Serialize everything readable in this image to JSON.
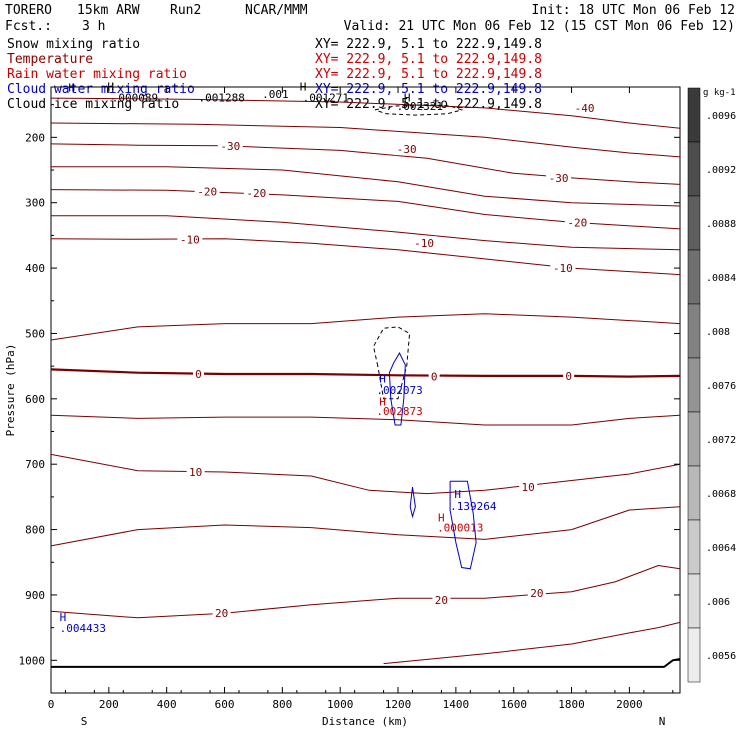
{
  "header": {
    "model": "TORERO",
    "resolution": "15km ARW",
    "run": "Run2",
    "org": "NCAR/MMM",
    "init": "Init: 18 UTC Mon 06 Feb 12",
    "fcst_label": "Fcst.:",
    "fcst_value": "3 h",
    "valid": "Valid: 21 UTC Mon 06 Feb 12 (15 CST Mon 06 Feb 12)"
  },
  "fields": [
    {
      "name": "Snow mixing ratio",
      "color": "#000000",
      "xy": "XY= 222.9,  5.1 to 222.9,149.8"
    },
    {
      "name": "Temperature",
      "color": "#8b0000",
      "xy": "XY= 222.9,  5.1 to 222.9,149.8"
    },
    {
      "name": "Rain water mixing ratio",
      "color": "#cc0000",
      "xy": "XY= 222.9,  5.1 to 222.9,149.8"
    },
    {
      "name": "Cloud water mixing ratio",
      "color": "#0000cc",
      "xy": "XY= 222.9,  5.1 to 222.9,149.8"
    },
    {
      "name": "Cloud ice mixing ratio",
      "color": "#000000",
      "xy": "XY= 222.9,  5.1 to 222.9,149.8"
    }
  ],
  "chart_data": {
    "type": "cross-section contour",
    "xlabel": "Distance (km)",
    "ylabel": "Pressure (hPa)",
    "x_range": [
      0,
      2175
    ],
    "y_range": [
      1050,
      123
    ],
    "x_ticks": [
      0,
      200,
      400,
      600,
      800,
      1000,
      1200,
      1400,
      1600,
      1800,
      2000
    ],
    "y_ticks": [
      200,
      300,
      400,
      500,
      600,
      700,
      800,
      900,
      1000
    ],
    "x_end_labels": {
      "left": "S",
      "right": "N"
    },
    "temperature_contours": [
      {
        "level": -40,
        "points": [
          [
            0,
            140
          ],
          [
            500,
            142
          ],
          [
            1000,
            146
          ],
          [
            1500,
            155
          ],
          [
            1800,
            167
          ],
          [
            2000,
            178
          ],
          [
            2175,
            186
          ]
        ]
      },
      {
        "level": -35,
        "points": [
          [
            0,
            178
          ],
          [
            500,
            180
          ],
          [
            1000,
            185
          ],
          [
            1500,
            200
          ],
          [
            1800,
            215
          ],
          [
            2000,
            224
          ],
          [
            2175,
            230
          ]
        ]
      },
      {
        "level": -30,
        "points": [
          [
            0,
            210
          ],
          [
            300,
            212
          ],
          [
            600,
            213
          ],
          [
            1000,
            220
          ],
          [
            1300,
            232
          ],
          [
            1600,
            255
          ],
          [
            1800,
            262
          ],
          [
            2000,
            268
          ],
          [
            2175,
            272
          ]
        ]
      },
      {
        "level": -25,
        "points": [
          [
            0,
            245
          ],
          [
            400,
            245
          ],
          [
            800,
            250
          ],
          [
            1200,
            268
          ],
          [
            1500,
            290
          ],
          [
            1800,
            300
          ],
          [
            2175,
            305
          ]
        ]
      },
      {
        "level": -20,
        "points": [
          [
            0,
            280
          ],
          [
            400,
            281
          ],
          [
            800,
            288
          ],
          [
            1200,
            298
          ],
          [
            1500,
            318
          ],
          [
            1800,
            330
          ],
          [
            2175,
            340
          ]
        ]
      },
      {
        "level": -15,
        "points": [
          [
            0,
            320
          ],
          [
            400,
            320
          ],
          [
            800,
            330
          ],
          [
            1200,
            345
          ],
          [
            1500,
            358
          ],
          [
            1800,
            368
          ],
          [
            2175,
            372
          ]
        ]
      },
      {
        "level": -10,
        "points": [
          [
            0,
            355
          ],
          [
            300,
            356
          ],
          [
            600,
            355
          ],
          [
            900,
            362
          ],
          [
            1200,
            372
          ],
          [
            1500,
            386
          ],
          [
            1800,
            400
          ],
          [
            2175,
            410
          ]
        ]
      },
      {
        "level": -5,
        "points": [
          [
            0,
            510
          ],
          [
            300,
            490
          ],
          [
            600,
            485
          ],
          [
            900,
            485
          ],
          [
            1200,
            475
          ],
          [
            1500,
            470
          ],
          [
            1800,
            475
          ],
          [
            2175,
            485
          ]
        ]
      },
      {
        "level": 0,
        "points": [
          [
            0,
            555
          ],
          [
            300,
            560
          ],
          [
            600,
            562
          ],
          [
            900,
            562
          ],
          [
            1200,
            564
          ],
          [
            1500,
            565
          ],
          [
            1800,
            565
          ],
          [
            2000,
            566
          ],
          [
            2175,
            565
          ]
        ]
      },
      {
        "level": 5,
        "points": [
          [
            0,
            625
          ],
          [
            300,
            630
          ],
          [
            600,
            628
          ],
          [
            900,
            628
          ],
          [
            1200,
            632
          ],
          [
            1500,
            640
          ],
          [
            1800,
            640
          ],
          [
            2000,
            630
          ],
          [
            2175,
            625
          ]
        ]
      },
      {
        "level": 10,
        "points": [
          [
            0,
            685
          ],
          [
            300,
            710
          ],
          [
            600,
            712
          ],
          [
            900,
            718
          ],
          [
            1100,
            740
          ],
          [
            1300,
            745
          ],
          [
            1500,
            740
          ],
          [
            1800,
            725
          ],
          [
            2000,
            715
          ],
          [
            2175,
            700
          ]
        ]
      },
      {
        "level": 15,
        "points": [
          [
            0,
            825
          ],
          [
            300,
            800
          ],
          [
            600,
            793
          ],
          [
            900,
            797
          ],
          [
            1200,
            808
          ],
          [
            1500,
            815
          ],
          [
            1800,
            800
          ],
          [
            2000,
            770
          ],
          [
            2175,
            765
          ]
        ]
      },
      {
        "level": 20,
        "points": [
          [
            0,
            925
          ],
          [
            300,
            935
          ],
          [
            600,
            928
          ],
          [
            900,
            915
          ],
          [
            1200,
            905
          ],
          [
            1500,
            905
          ],
          [
            1800,
            895
          ],
          [
            1950,
            880
          ],
          [
            2100,
            855
          ],
          [
            2175,
            860
          ]
        ]
      },
      {
        "level": 25,
        "points": [
          [
            1150,
            1005
          ],
          [
            1500,
            990
          ],
          [
            1800,
            975
          ],
          [
            2000,
            958
          ],
          [
            2100,
            950
          ],
          [
            2175,
            942
          ]
        ]
      }
    ],
    "temperature_labels": [
      {
        "x": 1845,
        "p": 155,
        "text": "-40"
      },
      {
        "x": 620,
        "p": 213,
        "text": "-30"
      },
      {
        "x": 1230,
        "p": 218,
        "text": "-30"
      },
      {
        "x": 1755,
        "p": 262,
        "text": "-30"
      },
      {
        "x": 540,
        "p": 283,
        "text": "-20"
      },
      {
        "x": 710,
        "p": 285,
        "text": "-20"
      },
      {
        "x": 1820,
        "p": 330,
        "text": "-20"
      },
      {
        "x": 480,
        "p": 356,
        "text": "-10"
      },
      {
        "x": 1290,
        "p": 362,
        "text": "-10"
      },
      {
        "x": 1770,
        "p": 400,
        "text": "-10"
      },
      {
        "x": 510,
        "p": 562,
        "text": "0"
      },
      {
        "x": 1325,
        "p": 566,
        "text": "0"
      },
      {
        "x": 1790,
        "p": 565,
        "text": "0"
      },
      {
        "x": 500,
        "p": 712,
        "text": "10"
      },
      {
        "x": 1650,
        "p": 735,
        "text": "10"
      },
      {
        "x": 1350,
        "p": 908,
        "text": "20"
      },
      {
        "x": 1680,
        "p": 897,
        "text": "20"
      },
      {
        "x": 590,
        "p": 928,
        "text": "20"
      }
    ],
    "snow_contours": [
      {
        "points": [
          [
            1120,
            158
          ],
          [
            1190,
            152
          ],
          [
            1300,
            150
          ],
          [
            1380,
            152
          ],
          [
            1420,
            158
          ],
          [
            1370,
            164
          ],
          [
            1260,
            166
          ],
          [
            1160,
            164
          ],
          [
            1120,
            158
          ]
        ]
      },
      {
        "points": [
          [
            1130,
            550
          ],
          [
            1115,
            520
          ],
          [
            1150,
            492
          ],
          [
            1200,
            490
          ],
          [
            1240,
            500
          ],
          [
            1230,
            550
          ],
          [
            1200,
            600
          ],
          [
            1150,
            600
          ],
          [
            1130,
            550
          ]
        ]
      }
    ],
    "cloud_water_contours": [
      {
        "points": [
          [
            1170,
            560
          ],
          [
            1185,
            545
          ],
          [
            1205,
            530
          ],
          [
            1225,
            548
          ],
          [
            1220,
            600
          ],
          [
            1210,
            640
          ],
          [
            1190,
            640
          ],
          [
            1175,
            600
          ],
          [
            1170,
            560
          ]
        ]
      },
      {
        "points": [
          [
            1250,
            735
          ],
          [
            1260,
            765
          ],
          [
            1250,
            780
          ],
          [
            1242,
            765
          ],
          [
            1250,
            735
          ]
        ]
      },
      {
        "points": [
          [
            1380,
            726
          ],
          [
            1440,
            726
          ],
          [
            1460,
            775
          ],
          [
            1470,
            820
          ],
          [
            1450,
            860
          ],
          [
            1420,
            858
          ],
          [
            1400,
            820
          ],
          [
            1380,
            770
          ],
          [
            1380,
            726
          ]
        ]
      }
    ],
    "annotations": [
      {
        "x": 30,
        "p": 940,
        "text": "H",
        "color": "#0000cc"
      },
      {
        "x": 30,
        "p": 957,
        "text": ".004433",
        "color": "#0000cc"
      },
      {
        "x": 1395,
        "p": 752,
        "text": "H",
        "color": "#0000cc"
      },
      {
        "x": 1380,
        "p": 770,
        "text": ".139264",
        "color": "#0000cc"
      },
      {
        "x": 1338,
        "p": 788,
        "text": "H",
        "color": "#cc0000"
      },
      {
        "x": 1335,
        "p": 803,
        "text": ".000013",
        "color": "#cc0000"
      },
      {
        "x": 1135,
        "p": 575,
        "text": "H",
        "color": "#0000cc"
      },
      {
        "x": 1125,
        "p": 593,
        "text": ".002073",
        "color": "#0000cc"
      },
      {
        "x": 1135,
        "p": 610,
        "text": "H",
        "color": "#cc0000"
      },
      {
        "x": 1125,
        "p": 625,
        "text": ".002873",
        "color": "#cc0000"
      },
      {
        "x": 60,
        "p": 130,
        "text": "H",
        "color": "#000000"
      },
      {
        "x": 195,
        "p": 128,
        "text": "H",
        "color": "#000000"
      },
      {
        "x": 210,
        "p": 145,
        "text": ".000089",
        "color": "#000000"
      },
      {
        "x": 510,
        "p": 145,
        "text": ".001288",
        "color": "#000000"
      },
      {
        "x": 730,
        "p": 140,
        "text": ".001",
        "color": "#000000"
      },
      {
        "x": 860,
        "p": 128,
        "text": "H",
        "color": "#000000"
      },
      {
        "x": 870,
        "p": 145,
        "text": ".001271",
        "color": "#000000"
      },
      {
        "x": 1220,
        "p": 145,
        "text": "H",
        "color": "#000000"
      },
      {
        "x": 1195,
        "p": 158,
        "text": ".002321",
        "color": "#000000"
      }
    ],
    "colorbar": {
      "unit": "g kg-1",
      "ticks": [
        ".0096",
        ".0092",
        ".0088",
        ".0084",
        ".008",
        ".0076",
        ".0072",
        ".0068",
        ".0064",
        ".006",
        ".0056"
      ],
      "shades": [
        "#3a3a3a",
        "#4d4d4d",
        "#5e5e5e",
        "#707070",
        "#828282",
        "#949494",
        "#a6a6a6",
        "#b8b8b8",
        "#cacaca",
        "#dcdcdc",
        "#ececec"
      ]
    }
  }
}
